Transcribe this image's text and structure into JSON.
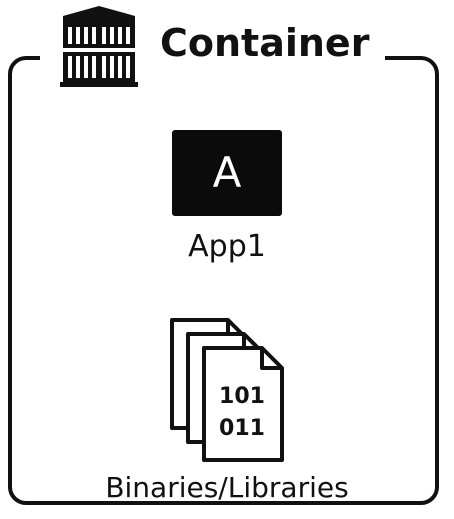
{
  "container": {
    "title": "Container",
    "icon": "shipping-container-icon"
  },
  "app": {
    "letter": "A",
    "label": "App1",
    "icon": "app-tile-icon"
  },
  "binaries": {
    "line1": "101",
    "line2": "011",
    "label": "Binaries/Libraries",
    "icon": "stacked-documents-icon"
  }
}
